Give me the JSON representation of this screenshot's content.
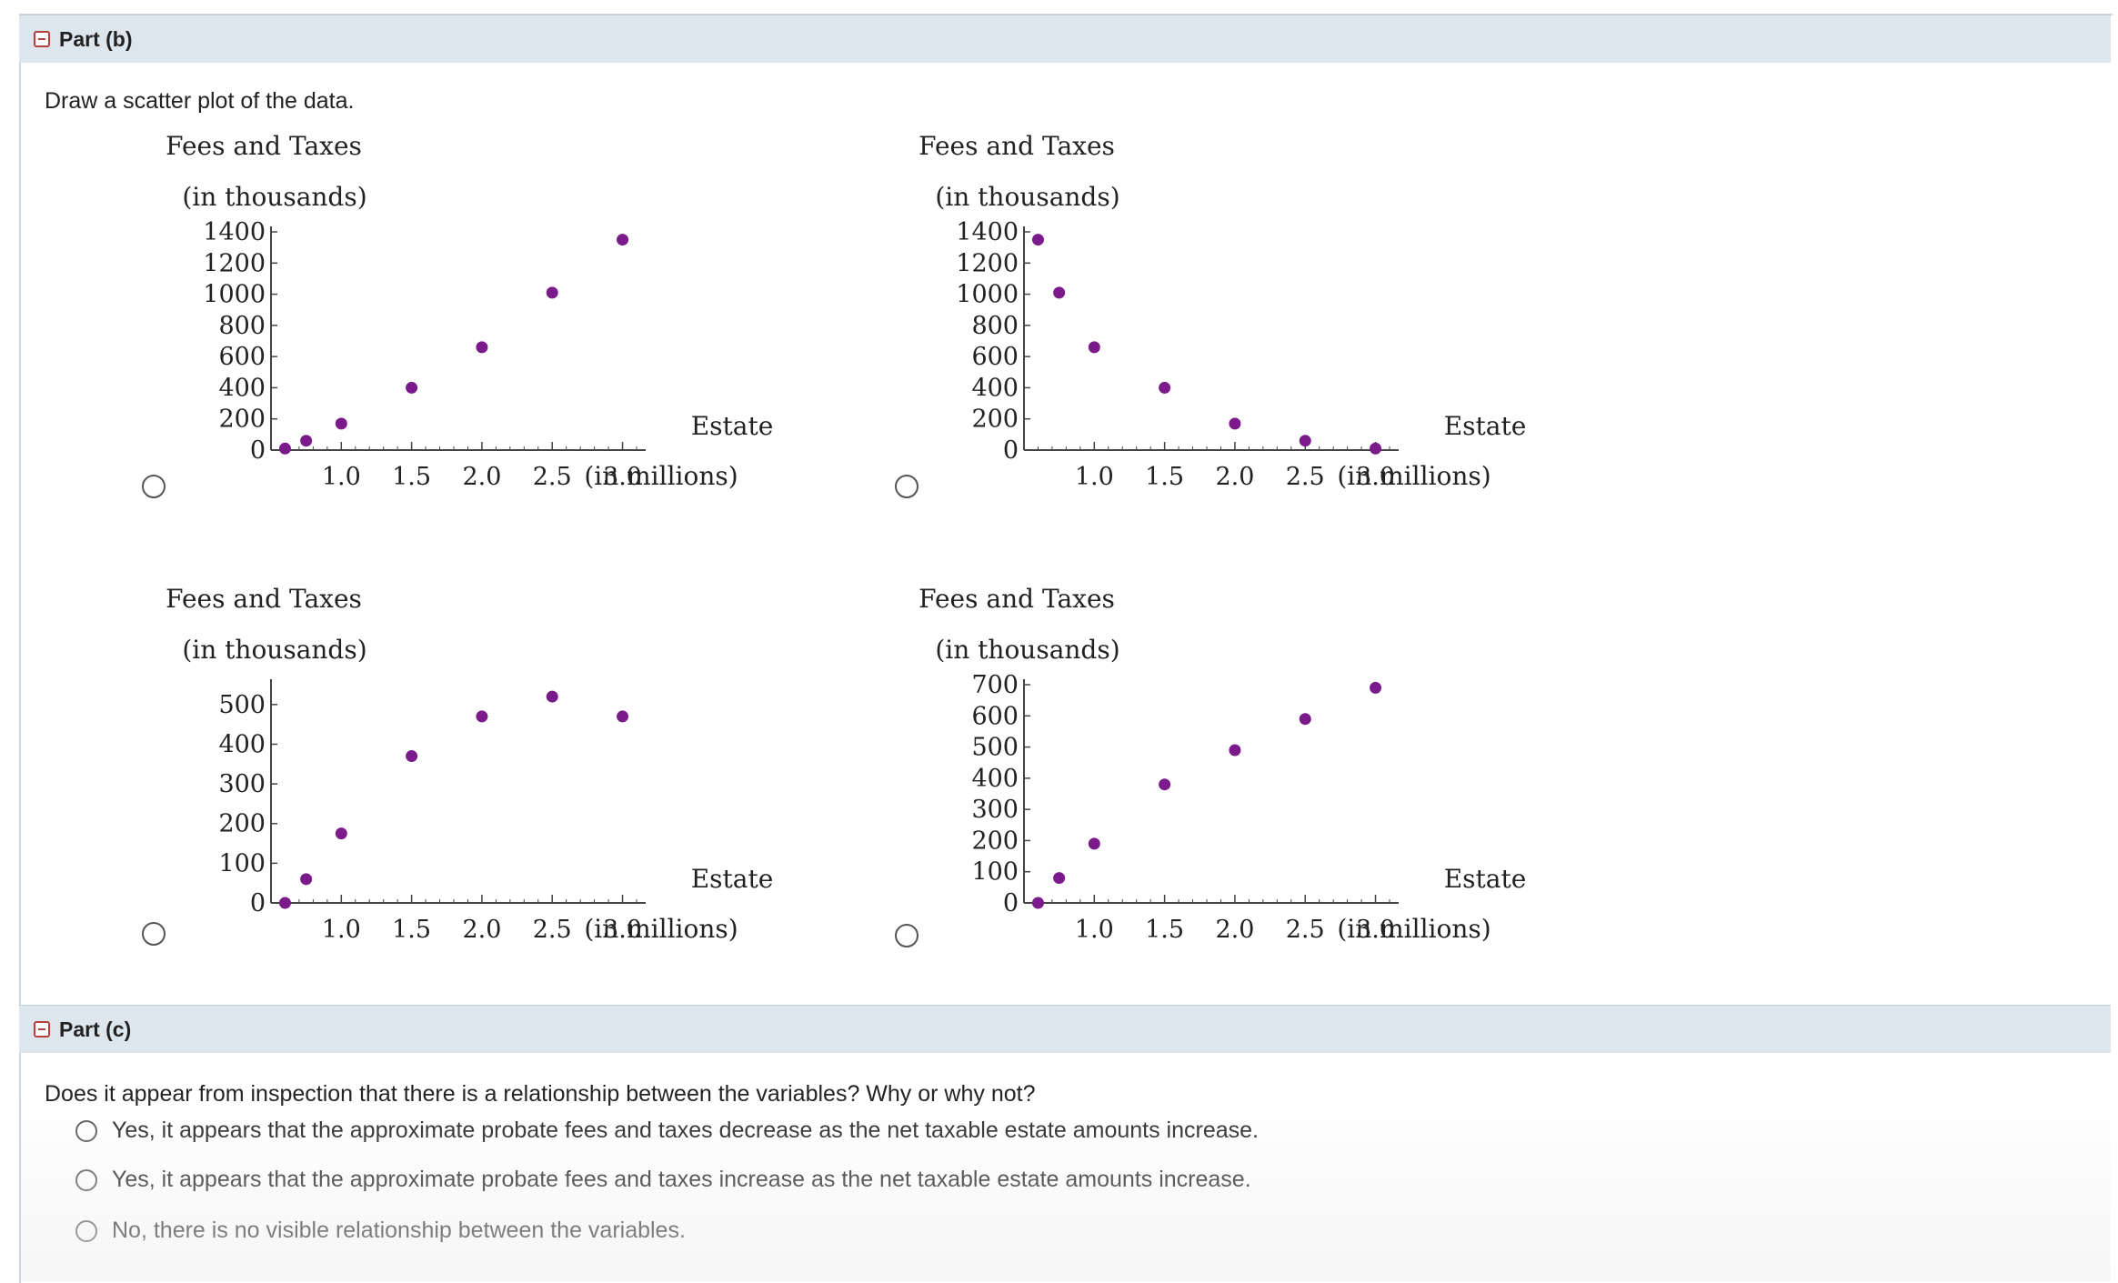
{
  "part_b": {
    "header": "Part (b)",
    "prompt": "Draw a scatter plot of the data."
  },
  "part_c": {
    "header": "Part (c)",
    "question": "Does it appear from inspection that there is a relationship between the variables? Why or why not?",
    "options": [
      "Yes, it appears that the approximate probate fees and taxes decrease as the net taxable estate amounts increase.",
      "Yes, it appears that the approximate probate fees and taxes increase as the net taxable estate amounts increase.",
      "No, there is no visible relationship between the variables."
    ]
  },
  "colors": {
    "point": "#7b1a8a",
    "header_bg": "#dde5ed",
    "toggle": "#b3403b"
  },
  "chart_data": [
    {
      "type": "scatter",
      "ylabel_line1": "Fees and Taxes",
      "ylabel_line2": "(in thousands)",
      "xlabel_line1": "Estate",
      "xlabel_line2": "(in millions)",
      "xlim": [
        0.5,
        3.1
      ],
      "ylim": [
        0,
        1400
      ],
      "xticks": [
        "1.0",
        "1.5",
        "2.0",
        "2.5",
        "3.0"
      ],
      "yticks": [
        "0",
        "200",
        "400",
        "600",
        "800",
        "1000",
        "1200",
        "1400"
      ],
      "x": [
        0.6,
        0.75,
        1.0,
        1.5,
        2.0,
        2.5,
        3.0
      ],
      "y": [
        10,
        60,
        170,
        400,
        660,
        1010,
        1350
      ]
    },
    {
      "type": "scatter",
      "ylabel_line1": "Fees and Taxes",
      "ylabel_line2": "(in thousands)",
      "xlabel_line1": "Estate",
      "xlabel_line2": "(in millions)",
      "xlim": [
        0.5,
        3.1
      ],
      "ylim": [
        0,
        1400
      ],
      "xticks": [
        "1.0",
        "1.5",
        "2.0",
        "2.5",
        "3.0"
      ],
      "yticks": [
        "0",
        "200",
        "400",
        "600",
        "800",
        "1000",
        "1200",
        "1400"
      ],
      "x": [
        0.6,
        0.75,
        1.0,
        1.5,
        2.0,
        2.5,
        3.0
      ],
      "y": [
        1350,
        1010,
        660,
        400,
        170,
        60,
        10
      ]
    },
    {
      "type": "scatter",
      "ylabel_line1": "Fees and Taxes",
      "ylabel_line2": "(in thousands)",
      "xlabel_line1": "Estate",
      "xlabel_line2": "(in millions)",
      "xlim": [
        0.5,
        3.1
      ],
      "ylim": [
        0,
        550
      ],
      "xticks": [
        "1.0",
        "1.5",
        "2.0",
        "2.5",
        "3.0"
      ],
      "yticks": [
        "0",
        "100",
        "200",
        "300",
        "400",
        "500"
      ],
      "x": [
        0.6,
        0.75,
        1.0,
        1.5,
        2.0,
        2.5,
        3.0
      ],
      "y": [
        0,
        60,
        175,
        370,
        470,
        520,
        470
      ]
    },
    {
      "type": "scatter",
      "ylabel_line1": "Fees and Taxes",
      "ylabel_line2": "(in thousands)",
      "xlabel_line1": "Estate",
      "xlabel_line2": "(in millions)",
      "xlim": [
        0.5,
        3.1
      ],
      "ylim": [
        0,
        700
      ],
      "xticks": [
        "1.0",
        "1.5",
        "2.0",
        "2.5",
        "3.0"
      ],
      "yticks": [
        "0",
        "100",
        "200",
        "300",
        "400",
        "500",
        "600",
        "700"
      ],
      "x": [
        0.6,
        0.75,
        1.0,
        1.5,
        2.0,
        2.5,
        3.0
      ],
      "y": [
        0,
        80,
        190,
        380,
        490,
        590,
        690
      ]
    }
  ]
}
